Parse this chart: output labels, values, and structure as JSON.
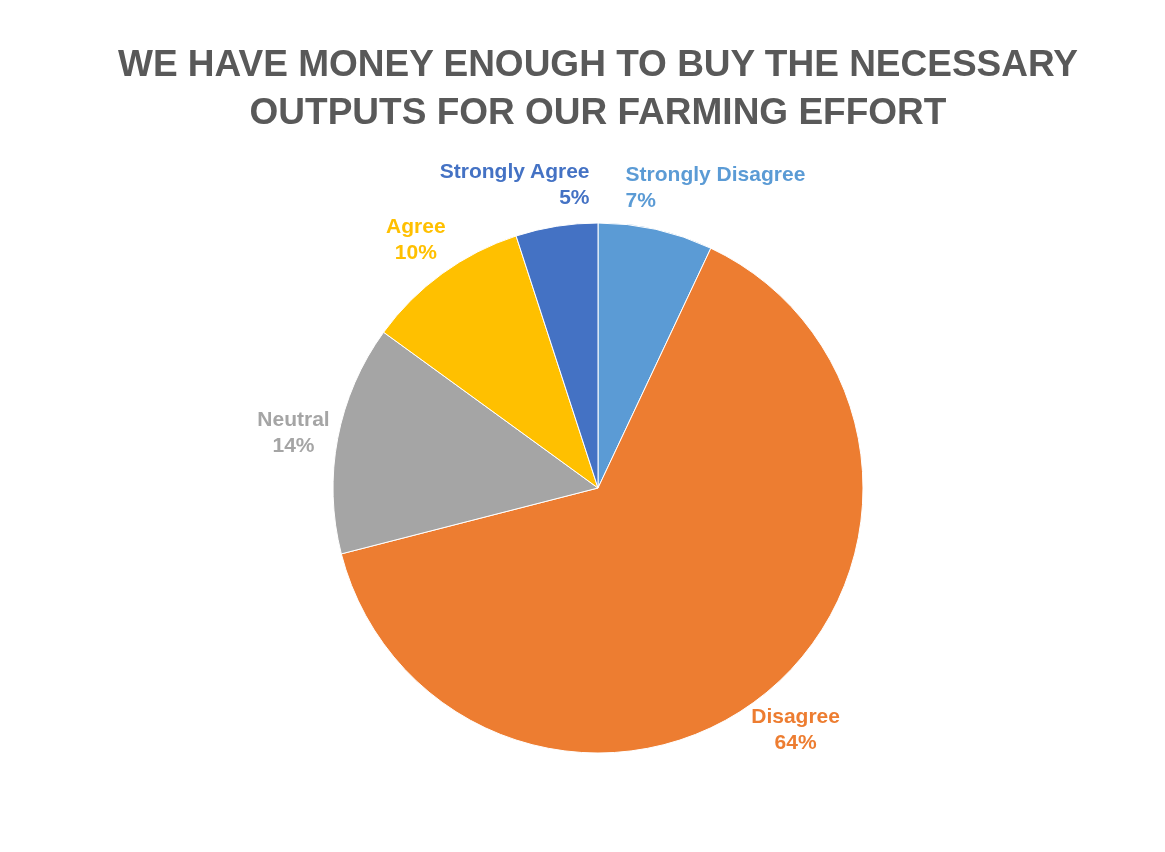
{
  "chart_data": {
    "type": "pie",
    "title": "WE HAVE MONEY ENOUGH TO BUY THE NECESSARY OUTPUTS FOR OUR FARMING EFFORT",
    "categories": [
      "Strongly Disagree",
      "Disagree",
      "Neutral",
      "Agree",
      "Strongly Agree"
    ],
    "values": [
      7,
      64,
      14,
      10,
      5
    ],
    "value_labels": [
      "7%",
      "64%",
      "14%",
      "10%",
      "5%"
    ],
    "colors": [
      "#5b9bd5",
      "#ed7d31",
      "#a5a5a5",
      "#ffc000",
      "#4472c4"
    ],
    "legend": false
  }
}
